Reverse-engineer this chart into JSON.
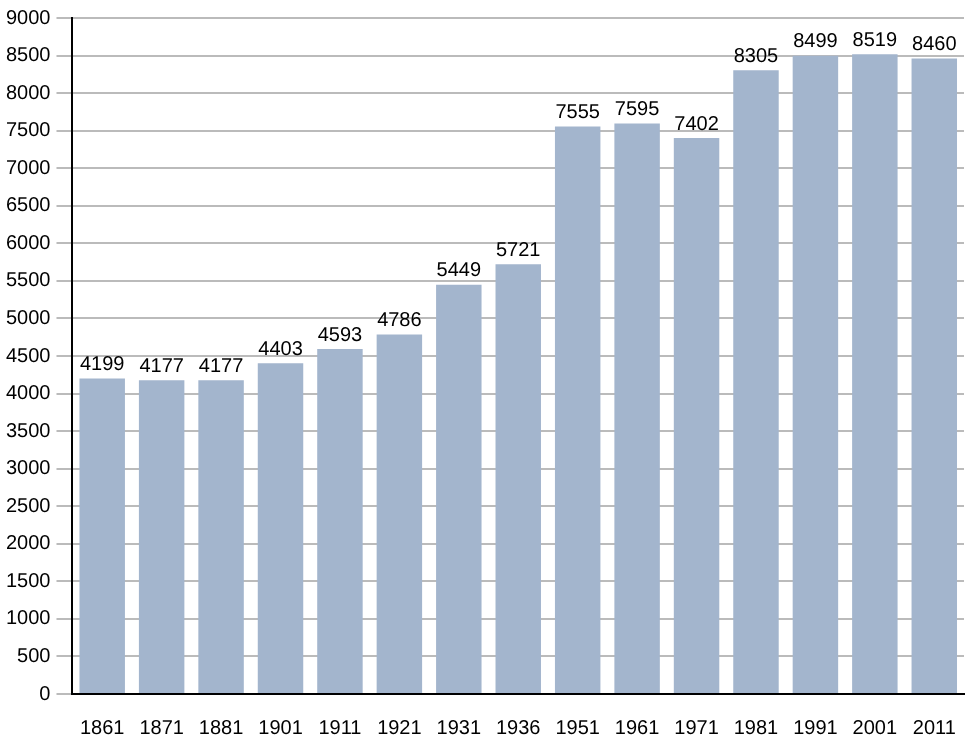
{
  "chart_data": {
    "type": "bar",
    "categories": [
      "1861",
      "1871",
      "1881",
      "1901",
      "1911",
      "1921",
      "1931",
      "1936",
      "1951",
      "1961",
      "1971",
      "1981",
      "1991",
      "2001",
      "2011"
    ],
    "values": [
      4199,
      4177,
      4177,
      4403,
      4593,
      4786,
      5449,
      5721,
      7555,
      7595,
      7402,
      8305,
      8499,
      8519,
      8460
    ],
    "color": "#a3b5cd",
    "ylim": [
      0,
      9000
    ],
    "yticks": [
      0,
      500,
      1000,
      1500,
      2000,
      2500,
      3000,
      3500,
      4000,
      4500,
      5000,
      5500,
      6000,
      6500,
      7000,
      7500,
      8000,
      8500,
      9000
    ],
    "grid": "y",
    "data_labels": true
  }
}
